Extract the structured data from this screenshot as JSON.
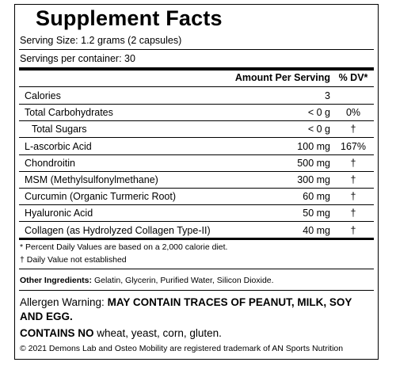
{
  "header": {
    "title": "Supplement Facts",
    "serving_size": "Serving Size: 1.2 grams (2 capsules)",
    "servings_per_container": "Servings per container: 30"
  },
  "table": {
    "columns": [
      "Amount Per Serving",
      "% DV*"
    ],
    "rows": [
      [
        "Calories",
        "3",
        ""
      ],
      [
        "Total Carbohydrates",
        "< 0 g",
        "0%"
      ],
      [
        "Total Sugars",
        "< 0 g",
        "†"
      ],
      [
        "L-ascorbic Acid",
        "100 mg",
        "167%"
      ],
      [
        "Chondroitin",
        "500 mg",
        "†"
      ],
      [
        "MSM (Methylsulfonylmethane)",
        "300 mg",
        "†"
      ],
      [
        "Curcumin (Organic Turmeric Root)",
        "60 mg",
        "†"
      ],
      [
        "Hyaluronic Acid",
        "50 mg",
        "†"
      ],
      [
        "Collagen (as Hydrolyzed Collagen Type-II)",
        "40 mg",
        "†"
      ]
    ]
  },
  "footnotes": [
    "* Percent Daily Values are based on a 2,000 calorie diet.",
    "† Daily Value not established"
  ],
  "other_ingredients": {
    "label": "Other Ingredients:",
    "text": "Gelatin, Glycerin, Purified Water, Silicon Dioxide."
  },
  "allergen": {
    "label": "Allergen Warning:",
    "text": "MAY CONTAIN TRACES OF PEANUT, MILK, SOY AND EGG."
  },
  "contains": {
    "label": "CONTAINS NO",
    "text": "wheat, yeast, corn, gluten."
  },
  "copyright": "© 2021 Demons Lab and Osteo Mobility are registered trademark of AN Sports Nutrition"
}
